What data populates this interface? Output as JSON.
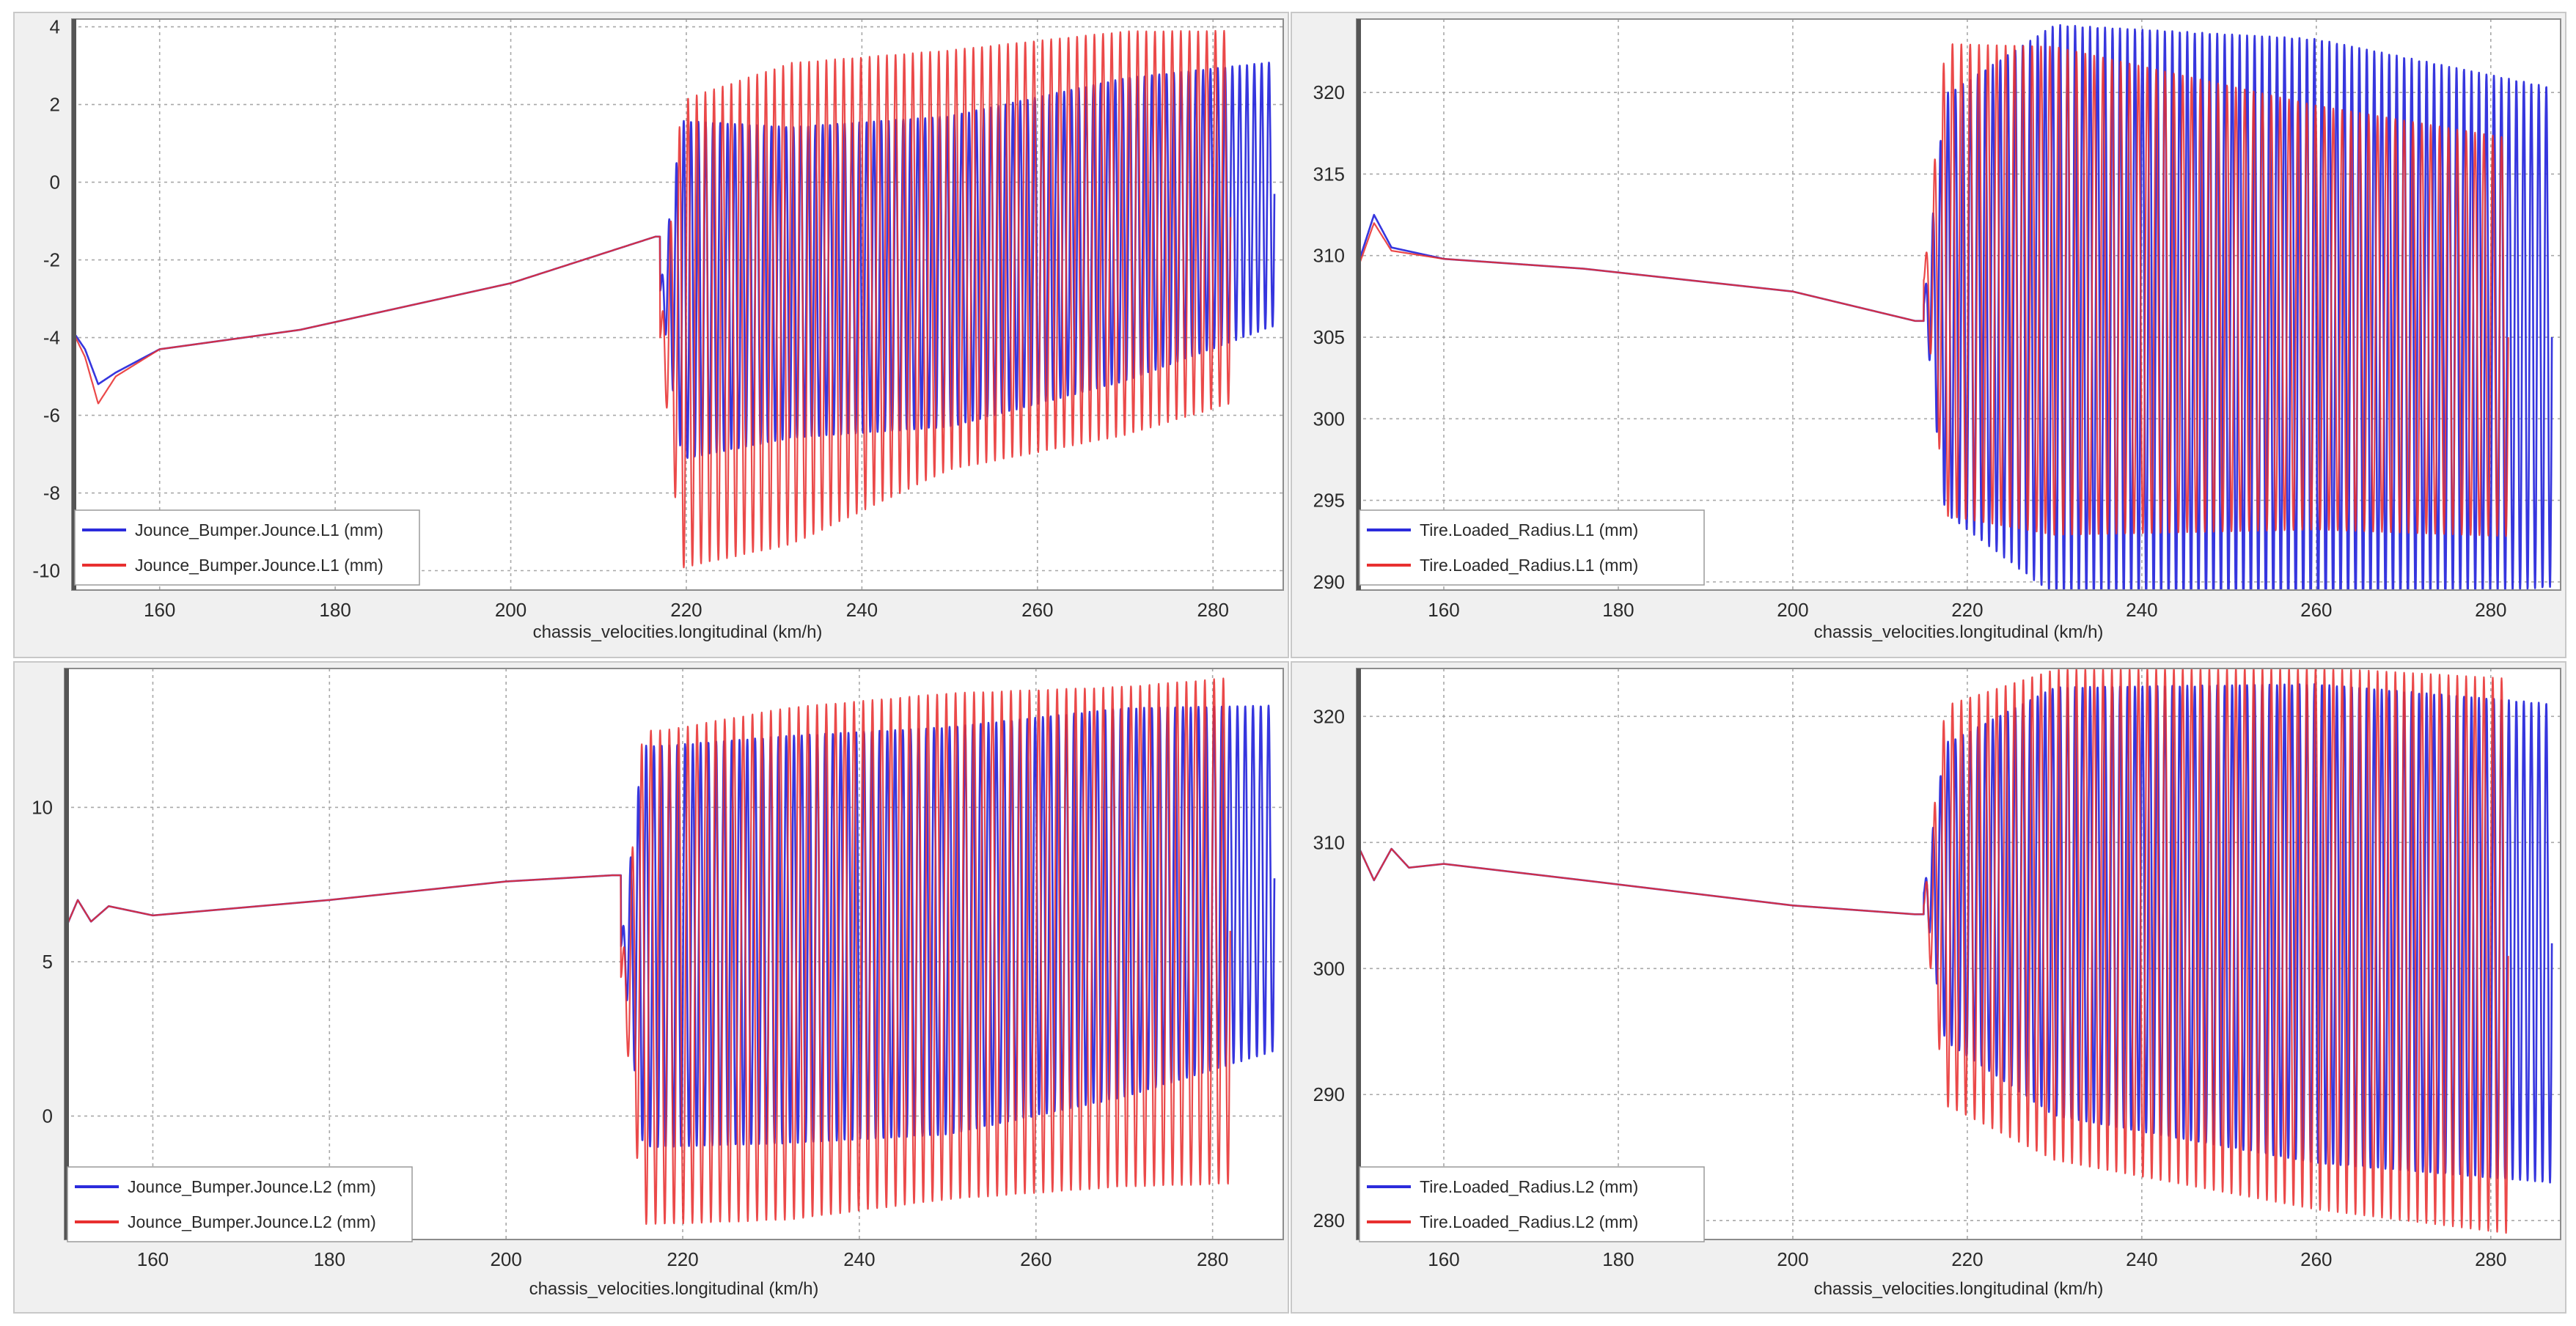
{
  "chart_data": [
    {
      "type": "line",
      "panel": "top-left",
      "xlabel": "chassis_velocities.longitudinal (km/h)",
      "ylabel": "",
      "xlim": [
        150,
        288
      ],
      "ylim": [
        -10.5,
        4.2
      ],
      "xticks": [
        160,
        180,
        200,
        220,
        240,
        260,
        280
      ],
      "yticks": [
        -10,
        -8,
        -6,
        -4,
        -2,
        0,
        2,
        4
      ],
      "legend_location": "bottom-left",
      "series": [
        {
          "name": "Jounce_Bumper.Jounce.L1 (mm)",
          "color": "#2b2bdc",
          "x_end": 287,
          "trend": [
            [
              150,
              -3.8
            ],
            [
              151.5,
              -4.3
            ],
            [
              153,
              -5.2
            ],
            [
              155,
              -4.9
            ],
            [
              160,
              -4.3
            ],
            [
              176,
              -3.8
            ],
            [
              200,
              -2.6
            ],
            [
              216.5,
              -1.4
            ]
          ],
          "osc_start": 217,
          "osc_cycles": 84,
          "osc_center": [
            [
              218,
              -2.8
            ],
            [
              250,
              -2.3
            ],
            [
              287,
              -0.3
            ]
          ],
          "osc_amp": [
            [
              218,
              4.4
            ],
            [
              232,
              4.0
            ],
            [
              250,
              4.0
            ],
            [
              270,
              3.9
            ],
            [
              287,
              3.4
            ]
          ]
        },
        {
          "name": "Jounce_Bumper.Jounce.L1 (mm)",
          "color": "#e83030",
          "x_end": 282,
          "trend": [
            [
              150,
              -3.8
            ],
            [
              151.5,
              -4.5
            ],
            [
              153,
              -5.7
            ],
            [
              155,
              -5.0
            ],
            [
              160,
              -4.3
            ],
            [
              176,
              -3.8
            ],
            [
              200,
              -2.6
            ],
            [
              216.5,
              -1.4
            ]
          ],
          "osc_start": 217,
          "osc_cycles": 66,
          "osc_center": [
            [
              218,
              -4.0
            ],
            [
              250,
              -2.0
            ],
            [
              282,
              -0.9
            ]
          ],
          "osc_amp": [
            [
              218,
              6.0
            ],
            [
              232,
              6.2
            ],
            [
              250,
              5.4
            ],
            [
              270,
              5.2
            ],
            [
              282,
              4.8
            ]
          ]
        }
      ]
    },
    {
      "type": "line",
      "panel": "top-right",
      "xlabel": "chassis_velocities.longitudinal (km/h)",
      "ylabel": "",
      "xlim": [
        150,
        288
      ],
      "ylim": [
        289.5,
        324.5
      ],
      "xticks": [
        160,
        180,
        200,
        220,
        240,
        260,
        280
      ],
      "yticks": [
        290,
        295,
        300,
        305,
        310,
        315,
        320
      ],
      "legend_location": "bottom-left",
      "series": [
        {
          "name": "Tire.Loaded_Radius.L1 (mm)",
          "color": "#2b2bdc",
          "x_end": 287,
          "trend": [
            [
              150,
              309.2
            ],
            [
              152,
              312.5
            ],
            [
              154,
              310.5
            ],
            [
              160,
              309.8
            ],
            [
              176,
              309.2
            ],
            [
              200,
              307.8
            ],
            [
              214,
              306.0
            ]
          ],
          "osc_start": 215,
          "osc_cycles": 84,
          "osc_center": [
            [
              218,
              307.0
            ],
            [
              287,
              305.0
            ]
          ],
          "osc_amp": [
            [
              218,
              13.0
            ],
            [
              230,
              17.5
            ],
            [
              260,
              17.5
            ],
            [
              287,
              15.3
            ]
          ]
        },
        {
          "name": "Tire.Loaded_Radius.L1 (mm)",
          "color": "#e83030",
          "x_end": 282,
          "trend": [
            [
              150,
              309.0
            ],
            [
              152,
              312.0
            ],
            [
              154,
              310.3
            ],
            [
              160,
              309.8
            ],
            [
              176,
              309.2
            ],
            [
              200,
              307.8
            ],
            [
              214,
              306.0
            ]
          ],
          "osc_start": 215,
          "osc_cycles": 66,
          "osc_center": [
            [
              218,
              308.5
            ],
            [
              282,
              305.0
            ]
          ],
          "osc_amp": [
            [
              218,
              14.5
            ],
            [
              230,
              15.0
            ],
            [
              260,
              13.0
            ],
            [
              282,
              12.2
            ]
          ]
        }
      ]
    },
    {
      "type": "line",
      "panel": "bottom-left",
      "xlabel": "chassis_velocities.longitudinal (km/h)",
      "ylabel": "",
      "xlim": [
        150,
        288
      ],
      "ylim": [
        -4,
        14.5
      ],
      "xticks": [
        160,
        180,
        200,
        220,
        240,
        260,
        280
      ],
      "yticks": [
        0,
        5,
        10
      ],
      "legend_location": "bottom-left",
      "series": [
        {
          "name": "Jounce_Bumper.Jounce.L2 (mm)",
          "color": "#2b2bdc",
          "x_end": 287,
          "trend": [
            [
              150,
              6.0
            ],
            [
              151.5,
              7.0
            ],
            [
              153,
              6.3
            ],
            [
              155,
              6.8
            ],
            [
              160,
              6.5
            ],
            [
              180,
              7.0
            ],
            [
              200,
              7.6
            ],
            [
              212,
              7.8
            ]
          ],
          "osc_start": 213,
          "osc_cycles": 84,
          "osc_center": [
            [
              218,
              5.5
            ],
            [
              250,
              6.0
            ],
            [
              287,
              7.7
            ]
          ],
          "osc_amp": [
            [
              218,
              6.5
            ],
            [
              232,
              6.6
            ],
            [
              250,
              6.6
            ],
            [
              270,
              6.3
            ],
            [
              287,
              5.6
            ]
          ]
        },
        {
          "name": "Jounce_Bumper.Jounce.L2 (mm)",
          "color": "#e83030",
          "x_end": 282,
          "trend": [
            [
              150,
              6.0
            ],
            [
              151.5,
              7.0
            ],
            [
              153,
              6.3
            ],
            [
              155,
              6.8
            ],
            [
              160,
              6.5
            ],
            [
              180,
              7.0
            ],
            [
              200,
              7.6
            ],
            [
              212,
              7.8
            ]
          ],
          "osc_start": 213,
          "osc_cycles": 66,
          "osc_center": [
            [
              218,
              4.5
            ],
            [
              250,
              5.5
            ],
            [
              282,
              6.0
            ]
          ],
          "osc_amp": [
            [
              218,
              8.0
            ],
            [
              232,
              8.3
            ],
            [
              250,
              8.2
            ],
            [
              270,
              8.1
            ],
            [
              282,
              8.2
            ]
          ]
        }
      ]
    },
    {
      "type": "line",
      "panel": "bottom-right",
      "xlabel": "chassis_velocities.longitudinal (km/h)",
      "ylabel": "",
      "xlim": [
        150,
        288
      ],
      "ylim": [
        278.5,
        323.8
      ],
      "xticks": [
        160,
        180,
        200,
        220,
        240,
        260,
        280
      ],
      "yticks": [
        280,
        290,
        300,
        310,
        320
      ],
      "legend_location": "bottom-left",
      "series": [
        {
          "name": "Tire.Loaded_Radius.L2 (mm)",
          "color": "#2b2bdc",
          "x_end": 287,
          "trend": [
            [
              150,
              310.0
            ],
            [
              152,
              307.0
            ],
            [
              154,
              309.5
            ],
            [
              156,
              308.0
            ],
            [
              160,
              308.3
            ],
            [
              176,
              307.0
            ],
            [
              200,
              305.0
            ],
            [
              214,
              304.3
            ]
          ],
          "osc_start": 215,
          "osc_cycles": 84,
          "osc_center": [
            [
              218,
              306.0
            ],
            [
              287,
              302.0
            ]
          ],
          "osc_amp": [
            [
              218,
              12.0
            ],
            [
              230,
              17.0
            ],
            [
              260,
              19.0
            ],
            [
              287,
              19.0
            ]
          ]
        },
        {
          "name": "Tire.Loaded_Radius.L2 (mm)",
          "color": "#e83030",
          "x_end": 282,
          "trend": [
            [
              150,
              310.0
            ],
            [
              152,
              307.0
            ],
            [
              154,
              309.5
            ],
            [
              156,
              308.0
            ],
            [
              160,
              308.3
            ],
            [
              176,
              307.0
            ],
            [
              200,
              305.0
            ],
            [
              214,
              304.3
            ]
          ],
          "osc_start": 215,
          "osc_cycles": 66,
          "osc_center": [
            [
              218,
              305.0
            ],
            [
              282,
              301.0
            ]
          ],
          "osc_amp": [
            [
              218,
              16.0
            ],
            [
              230,
              19.5
            ],
            [
              260,
              21.5
            ],
            [
              282,
              22.0
            ]
          ]
        }
      ]
    }
  ]
}
